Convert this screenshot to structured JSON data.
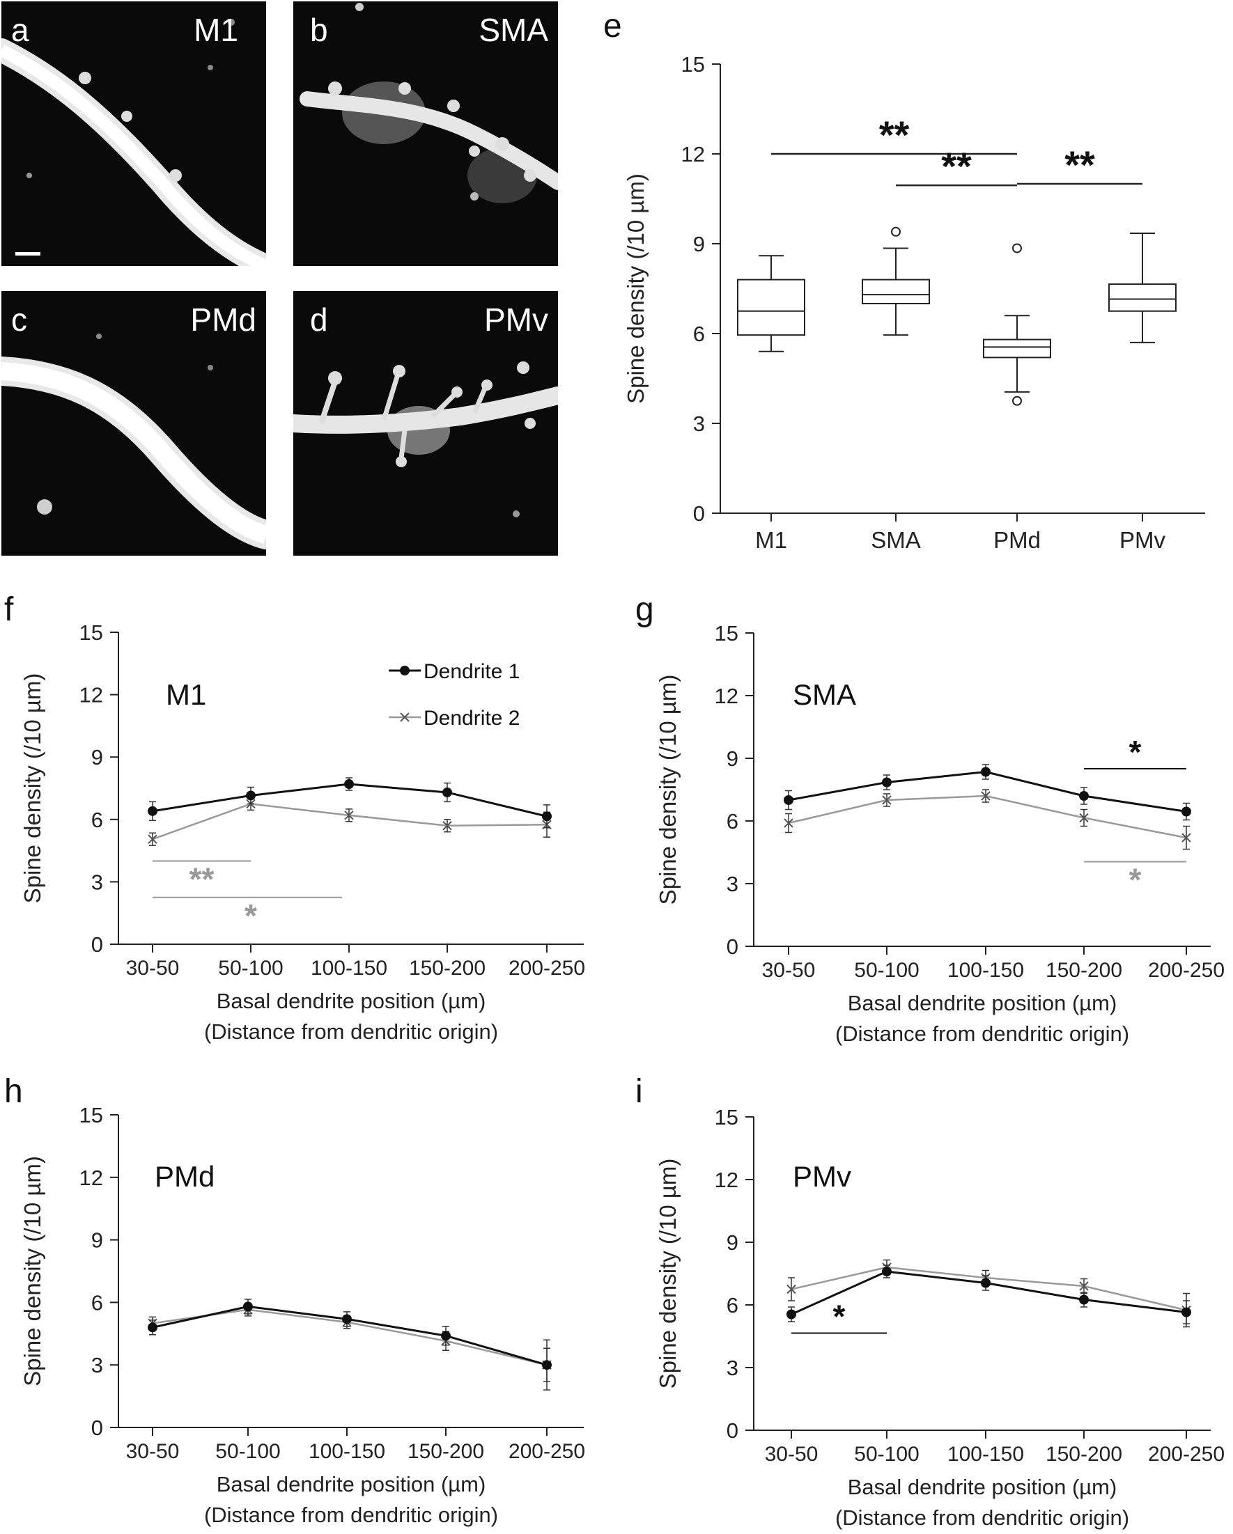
{
  "panels": {
    "a": {
      "letter": "a",
      "region": "M1"
    },
    "b": {
      "letter": "b",
      "region": "SMA"
    },
    "c": {
      "letter": "c",
      "region": "PMd"
    },
    "d": {
      "letter": "d",
      "region": "PMv"
    },
    "e": {
      "letter": "e"
    },
    "f": {
      "letter": "f"
    },
    "g": {
      "letter": "g"
    },
    "h": {
      "letter": "h"
    },
    "i": {
      "letter": "i"
    }
  },
  "colors": {
    "dendrite1": "#111111",
    "dendrite2": "#999999",
    "box": "#111111"
  },
  "chart_data": [
    {
      "id": "e",
      "type": "box",
      "ylabel": "Spine density (/10 µm)",
      "ylim": [
        0,
        15
      ],
      "yticks": [
        0,
        3,
        6,
        9,
        12,
        15
      ],
      "categories": [
        "M1",
        "SMA",
        "PMd",
        "PMv"
      ],
      "boxes": [
        {
          "min": 5.4,
          "q1": 5.95,
          "median": 6.75,
          "q3": 7.8,
          "max": 8.6,
          "outliers": []
        },
        {
          "min": 5.95,
          "q1": 7.0,
          "median": 7.3,
          "q3": 7.8,
          "max": 8.85,
          "outliers": [
            9.4
          ]
        },
        {
          "min": 4.05,
          "q1": 5.2,
          "median": 5.55,
          "q3": 5.8,
          "max": 6.6,
          "outliers": [
            8.85,
            3.75
          ]
        },
        {
          "min": 5.7,
          "q1": 6.75,
          "median": 7.15,
          "q3": 7.65,
          "max": 9.35,
          "outliers": []
        }
      ],
      "significance": [
        {
          "from": 0,
          "to": 2,
          "y": 12.0,
          "label": "**"
        },
        {
          "from": 1,
          "to": 2,
          "y": 10.95,
          "label": "**"
        },
        {
          "from": 2,
          "to": 3,
          "y": 11.0,
          "label": "**"
        }
      ]
    },
    {
      "id": "f",
      "type": "line",
      "title": "M1",
      "xlabel": "Basal dendrite position (µm)",
      "xlabel2": "(Distance from dendritic origin)",
      "ylabel": "Spine density (/10 µm)",
      "ylim": [
        0,
        15
      ],
      "yticks": [
        0,
        3,
        6,
        9,
        12,
        15
      ],
      "categories": [
        "30-50",
        "50-100",
        "100-150",
        "150-200",
        "200-250"
      ],
      "legend": [
        "Dendrite 1",
        "Dendrite 2"
      ],
      "series": [
        {
          "name": "Dendrite 1",
          "values": [
            6.4,
            7.15,
            7.7,
            7.3,
            6.15
          ],
          "errors": [
            0.45,
            0.4,
            0.3,
            0.45,
            0.55
          ]
        },
        {
          "name": "Dendrite 2",
          "values": [
            5.05,
            6.75,
            6.2,
            5.7,
            5.75
          ],
          "errors": [
            0.3,
            0.3,
            0.3,
            0.3,
            0.6
          ]
        }
      ],
      "significance": [
        {
          "from": 0,
          "to": 1,
          "y": 4.0,
          "label": "**",
          "series": 2
        },
        {
          "from": 0,
          "to": 2,
          "y": 2.25,
          "label": "*",
          "series": 2
        }
      ]
    },
    {
      "id": "g",
      "type": "line",
      "title": "SMA",
      "xlabel": "Basal dendrite position (µm)",
      "xlabel2": "(Distance from dendritic origin)",
      "ylabel": "Spine density (/10 µm)",
      "ylim": [
        0,
        15
      ],
      "yticks": [
        0,
        3,
        6,
        9,
        12,
        15
      ],
      "categories": [
        "30-50",
        "50-100",
        "100-150",
        "150-200",
        "200-250"
      ],
      "series": [
        {
          "name": "Dendrite 1",
          "values": [
            7.0,
            7.85,
            8.35,
            7.2,
            6.45
          ],
          "errors": [
            0.45,
            0.35,
            0.35,
            0.4,
            0.4
          ]
        },
        {
          "name": "Dendrite 2",
          "values": [
            5.9,
            7.0,
            7.2,
            6.15,
            5.2
          ],
          "errors": [
            0.45,
            0.3,
            0.3,
            0.4,
            0.55
          ]
        }
      ],
      "significance": [
        {
          "from": 3,
          "to": 4,
          "y": 8.5,
          "label": "*",
          "series": 1
        },
        {
          "from": 3,
          "to": 4,
          "y": 4.05,
          "label": "*",
          "series": 2
        }
      ]
    },
    {
      "id": "h",
      "type": "line",
      "title": "PMd",
      "xlabel": "Basal dendrite position (µm)",
      "xlabel2": "(Distance from dendritic origin)",
      "ylabel": "Spine density (/10 µm)",
      "ylim": [
        0,
        15
      ],
      "yticks": [
        0,
        3,
        6,
        9,
        12,
        15
      ],
      "categories": [
        "30-50",
        "50-100",
        "100-150",
        "150-200",
        "200-250"
      ],
      "series": [
        {
          "name": "Dendrite 1",
          "values": [
            4.8,
            5.8,
            5.2,
            4.4,
            3.0
          ],
          "errors": [
            0.35,
            0.35,
            0.35,
            0.45,
            1.2
          ]
        },
        {
          "name": "Dendrite 2",
          "values": [
            5.0,
            5.65,
            5.05,
            4.15,
            3.0
          ],
          "errors": [
            0.3,
            0.3,
            0.3,
            0.45,
            0.8
          ]
        }
      ],
      "significance": []
    },
    {
      "id": "i",
      "type": "line",
      "title": "PMv",
      "xlabel": "Basal dendrite position (µm)",
      "xlabel2": "(Distance from dendritic origin)",
      "ylabel": "Spine density (/10 µm)",
      "ylim": [
        0,
        15
      ],
      "yticks": [
        0,
        3,
        6,
        9,
        12,
        15
      ],
      "categories": [
        "30-50",
        "50-100",
        "100-150",
        "150-200",
        "200-250"
      ],
      "series": [
        {
          "name": "Dendrite 1",
          "values": [
            5.55,
            7.6,
            7.05,
            6.25,
            5.65
          ],
          "errors": [
            0.35,
            0.3,
            0.35,
            0.35,
            0.55
          ]
        },
        {
          "name": "Dendrite 2",
          "values": [
            6.75,
            7.8,
            7.3,
            6.9,
            5.75
          ],
          "errors": [
            0.55,
            0.35,
            0.35,
            0.35,
            0.8
          ]
        }
      ],
      "significance": [
        {
          "from": 0,
          "to": 1,
          "y": 4.65,
          "label": "*",
          "series": 1
        }
      ]
    }
  ]
}
